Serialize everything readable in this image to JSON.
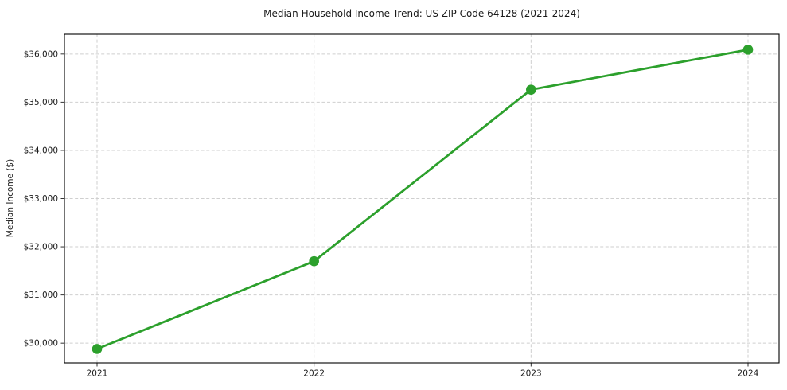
{
  "chart_data": {
    "type": "line",
    "title": "Median Household Income Trend: US ZIP Code 64128 (2021-2024)",
    "xlabel": "",
    "ylabel": "Median Income ($)",
    "categories": [
      "2021",
      "2022",
      "2023",
      "2024"
    ],
    "series": [
      {
        "values": [
          29880,
          31700,
          35260,
          36090
        ],
        "color": "#2ca02c",
        "marker": "circle"
      }
    ],
    "yticks": {
      "values": [
        30000,
        31000,
        32000,
        33000,
        34000,
        35000,
        36000
      ],
      "labels": [
        "$30,000",
        "$31,000",
        "$32,000",
        "$33,000",
        "$34,000",
        "$35,000",
        "$36,000"
      ]
    },
    "ylim": [
      29590,
      36410
    ],
    "grid": true,
    "legend_position": "none"
  },
  "styles": {
    "line_color": "#2ca02c",
    "grid_color": "#cfcfcf",
    "axis_border_color": "#000000",
    "tick_color": "#333333",
    "text_color": "#1a1a1a",
    "background_color": "#ffffff"
  }
}
